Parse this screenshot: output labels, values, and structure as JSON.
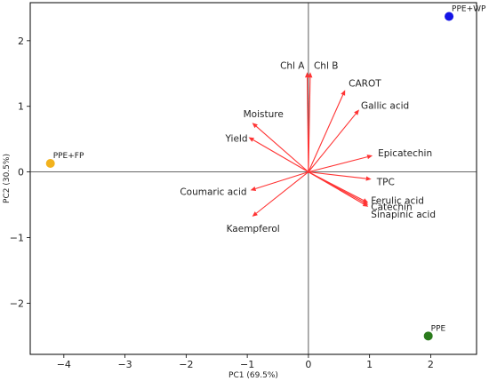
{
  "chart_data": {
    "type": "scatter",
    "title": "",
    "xlabel": "PC1 (69.5%)",
    "ylabel": "PC2 (30.5%)",
    "xlim": [
      -4.55,
      2.75
    ],
    "ylim": [
      -2.78,
      2.58
    ],
    "x_ticks": [
      -4,
      -3,
      -2,
      -1,
      0,
      1,
      2
    ],
    "y_ticks": [
      -2,
      -1,
      0,
      1,
      2
    ],
    "tick_labels": {
      "x": [
        "−4",
        "−3",
        "−2",
        "−1",
        "0",
        "1",
        "2"
      ],
      "y": [
        "−2",
        "−1",
        "0",
        "1",
        "2"
      ]
    },
    "reference_lines": {
      "x": 0,
      "y": 0
    },
    "grid": false,
    "legend": "none",
    "arrow_color": "#ff3333",
    "samples": [
      {
        "name": "PPE+WP",
        "x": 2.3,
        "y": 2.37,
        "color": "#1414e6"
      },
      {
        "name": "PPE+FP",
        "x": -4.22,
        "y": 0.13,
        "color": "#f2b21d"
      },
      {
        "name": "PPE",
        "x": 1.96,
        "y": -2.5,
        "color": "#2a7a1c"
      }
    ],
    "variables": [
      {
        "name": "Chl A",
        "x": -0.02,
        "y": 1.52
      },
      {
        "name": "Chl B",
        "x": 0.03,
        "y": 1.52
      },
      {
        "name": "CAROT",
        "x": 0.6,
        "y": 1.25
      },
      {
        "name": "Gallic acid",
        "x": 0.83,
        "y": 0.95
      },
      {
        "name": "Moisture",
        "x": -0.92,
        "y": 0.75
      },
      {
        "name": "Yield",
        "x": -0.98,
        "y": 0.53
      },
      {
        "name": "Epicatechin",
        "x": 1.05,
        "y": 0.25
      },
      {
        "name": "TPC",
        "x": 1.03,
        "y": -0.11
      },
      {
        "name": "Ferulic acid",
        "x": 0.98,
        "y": -0.47
      },
      {
        "name": "Catechin",
        "x": 0.98,
        "y": -0.5
      },
      {
        "name": "Sinapinic acid",
        "x": 0.98,
        "y": -0.53
      },
      {
        "name": "Coumaric acid",
        "x": -0.95,
        "y": -0.28
      },
      {
        "name": "Kaempferol",
        "x": -0.92,
        "y": -0.68
      }
    ]
  }
}
